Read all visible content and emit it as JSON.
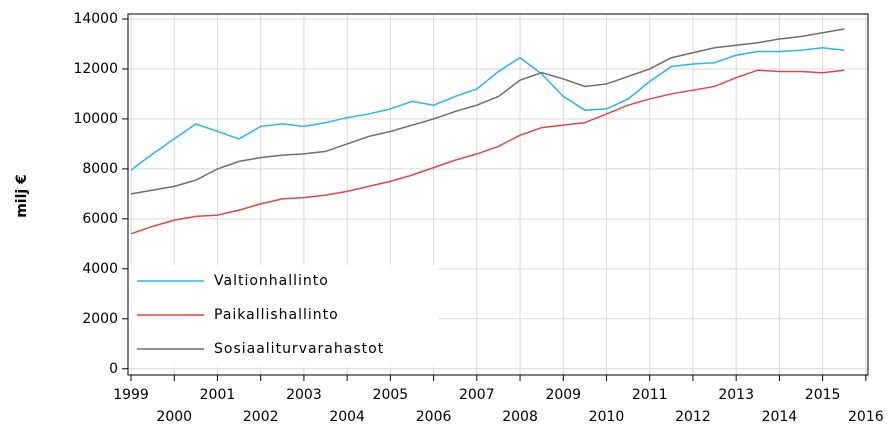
{
  "chart_data": {
    "type": "line",
    "y_label": "milj €",
    "x": [
      1999.0,
      1999.5,
      2000.0,
      2000.5,
      2001.0,
      2001.5,
      2002.0,
      2002.5,
      2003.0,
      2003.5,
      2004.0,
      2004.5,
      2005.0,
      2005.5,
      2006.0,
      2006.5,
      2007.0,
      2007.5,
      2008.0,
      2008.5,
      2009.0,
      2009.5,
      2010.0,
      2010.5,
      2011.0,
      2011.5,
      2012.0,
      2012.5,
      2013.0,
      2013.5,
      2014.0,
      2014.5,
      2015.0,
      2015.5
    ],
    "series": [
      {
        "name": "Valtionhallinto",
        "color": "#29b6e8",
        "values": [
          7950,
          8600,
          9200,
          9800,
          9500,
          9200,
          9700,
          9800,
          9700,
          9850,
          10050,
          10200,
          10400,
          10700,
          10550,
          10900,
          11200,
          11900,
          12450,
          11800,
          10900,
          10350,
          10400,
          10800,
          11500,
          12100,
          12200,
          12250,
          12550,
          12700,
          12700,
          12750,
          12850,
          12750
        ]
      },
      {
        "name": "Paikallishallinto",
        "color": "#e0474c",
        "values": [
          5400,
          5700,
          5950,
          6100,
          6150,
          6350,
          6600,
          6800,
          6850,
          6950,
          7100,
          7300,
          7500,
          7750,
          8050,
          8350,
          8600,
          8900,
          9350,
          9650,
          9750,
          9850,
          10200,
          10550,
          10800,
          11000,
          11150,
          11300,
          11650,
          11950,
          11900,
          11900,
          11850,
          11950
        ]
      },
      {
        "name": "Sosiaaliturvarahastot",
        "color": "#6e6e6e",
        "values": [
          7000,
          7150,
          7300,
          7550,
          8000,
          8300,
          8450,
          8550,
          8600,
          8700,
          9000,
          9300,
          9500,
          9750,
          10000,
          10300,
          10550,
          10900,
          11550,
          11850,
          11600,
          11300,
          11400,
          11700,
          12000,
          12450,
          12650,
          12850,
          12950,
          13050,
          13200,
          13300,
          13450,
          13600
        ]
      }
    ],
    "xlim": [
      1998.93,
      2016.05
    ],
    "xticks": [
      1999,
      2000,
      2001,
      2002,
      2003,
      2004,
      2005,
      2006,
      2007,
      2008,
      2009,
      2010,
      2011,
      2012,
      2013,
      2014,
      2015,
      2016
    ],
    "ylim": [
      -250,
      14200
    ],
    "yticks": [
      0,
      2000,
      4000,
      6000,
      8000,
      10000,
      12000,
      14000
    ],
    "grid": true,
    "legend": "lower left"
  }
}
